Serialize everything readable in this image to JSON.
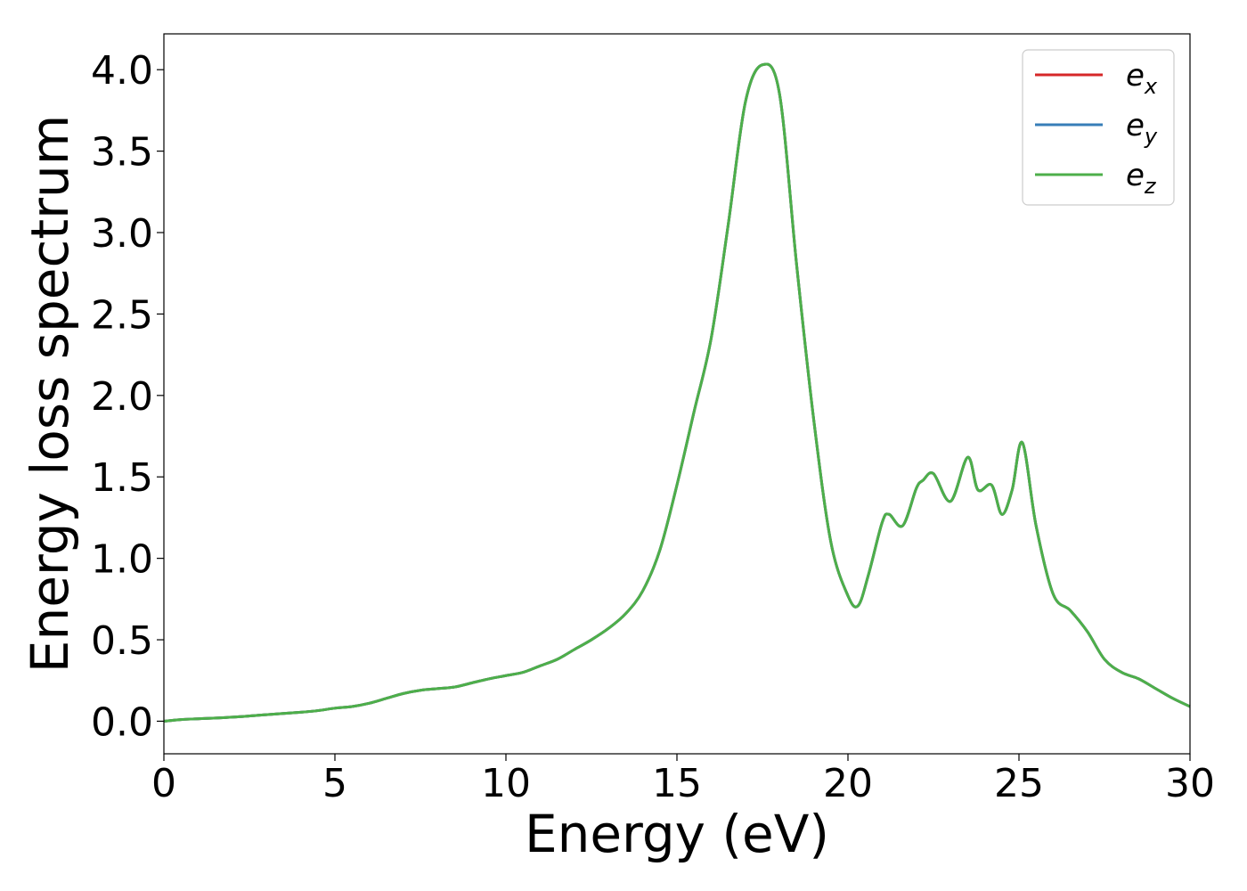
{
  "chart_data": {
    "type": "line",
    "title": "",
    "xlabel": "Energy (eV)",
    "ylabel": "Energy loss spectrum",
    "xlim": [
      0,
      30
    ],
    "ylim": [
      -0.2,
      4.22
    ],
    "xticks": [
      0,
      5,
      10,
      15,
      20,
      25,
      30
    ],
    "xtick_labels": [
      "0",
      "5",
      "10",
      "15",
      "20",
      "25",
      "30"
    ],
    "yticks": [
      0.0,
      0.5,
      1.0,
      1.5,
      2.0,
      2.5,
      3.0,
      3.5,
      4.0
    ],
    "ytick_labels": [
      "0.0",
      "0.5",
      "1.0",
      "1.5",
      "2.0",
      "2.5",
      "3.0",
      "3.5",
      "4.0"
    ],
    "grid": false,
    "legend_position": "top-right",
    "x": [
      0,
      0.5,
      1,
      2,
      3,
      4,
      4.5,
      5,
      5.5,
      6,
      6.5,
      7,
      7.5,
      8,
      8.5,
      9,
      9.5,
      10,
      10.5,
      11,
      11.5,
      12,
      12.5,
      13,
      13.5,
      14,
      14.5,
      15,
      15.5,
      16,
      16.5,
      17,
      17.5,
      18,
      18.5,
      19,
      19.5,
      20,
      20.3,
      20.6,
      21,
      21.2,
      21.6,
      22,
      22.2,
      22.5,
      23,
      23.5,
      23.8,
      24.2,
      24.5,
      24.8,
      25.1,
      25.5,
      26,
      26.5,
      27,
      27.5,
      28,
      28.5,
      29,
      29.5,
      30
    ],
    "series": [
      {
        "name": "e_x",
        "color": "#d62728",
        "values": [
          0.0,
          0.01,
          0.015,
          0.025,
          0.04,
          0.055,
          0.065,
          0.08,
          0.09,
          0.11,
          0.14,
          0.17,
          0.19,
          0.2,
          0.21,
          0.235,
          0.26,
          0.28,
          0.3,
          0.34,
          0.38,
          0.44,
          0.5,
          0.57,
          0.66,
          0.8,
          1.05,
          1.45,
          1.9,
          2.35,
          3.05,
          3.8,
          4.03,
          3.85,
          2.8,
          1.85,
          1.1,
          0.77,
          0.71,
          0.9,
          1.22,
          1.27,
          1.2,
          1.43,
          1.48,
          1.52,
          1.35,
          1.62,
          1.42,
          1.45,
          1.27,
          1.42,
          1.71,
          1.2,
          0.78,
          0.68,
          0.55,
          0.38,
          0.3,
          0.26,
          0.2,
          0.14,
          0.09
        ]
      },
      {
        "name": "e_y",
        "color": "#377eb8",
        "values": [
          0.0,
          0.01,
          0.015,
          0.025,
          0.04,
          0.055,
          0.065,
          0.08,
          0.09,
          0.11,
          0.14,
          0.17,
          0.19,
          0.2,
          0.21,
          0.235,
          0.26,
          0.28,
          0.3,
          0.34,
          0.38,
          0.44,
          0.5,
          0.57,
          0.66,
          0.8,
          1.05,
          1.45,
          1.9,
          2.35,
          3.05,
          3.8,
          4.03,
          3.85,
          2.8,
          1.85,
          1.1,
          0.77,
          0.71,
          0.9,
          1.22,
          1.27,
          1.2,
          1.43,
          1.48,
          1.52,
          1.35,
          1.62,
          1.42,
          1.45,
          1.27,
          1.42,
          1.71,
          1.2,
          0.78,
          0.68,
          0.55,
          0.38,
          0.3,
          0.26,
          0.2,
          0.14,
          0.09
        ]
      },
      {
        "name": "e_z",
        "color": "#4daf4a",
        "values": [
          0.0,
          0.01,
          0.015,
          0.025,
          0.04,
          0.055,
          0.065,
          0.08,
          0.09,
          0.11,
          0.14,
          0.17,
          0.19,
          0.2,
          0.21,
          0.235,
          0.26,
          0.28,
          0.3,
          0.34,
          0.38,
          0.44,
          0.5,
          0.57,
          0.66,
          0.8,
          1.05,
          1.45,
          1.9,
          2.35,
          3.05,
          3.8,
          4.03,
          3.85,
          2.8,
          1.85,
          1.1,
          0.77,
          0.71,
          0.9,
          1.22,
          1.27,
          1.2,
          1.43,
          1.48,
          1.52,
          1.35,
          1.62,
          1.42,
          1.45,
          1.27,
          1.42,
          1.71,
          1.2,
          0.78,
          0.68,
          0.55,
          0.38,
          0.3,
          0.26,
          0.2,
          0.14,
          0.09
        ]
      }
    ],
    "legend": [
      {
        "base": "e",
        "sub": "x",
        "color": "#d62728"
      },
      {
        "base": "e",
        "sub": "y",
        "color": "#377eb8"
      },
      {
        "base": "e",
        "sub": "z",
        "color": "#4daf4a"
      }
    ]
  }
}
